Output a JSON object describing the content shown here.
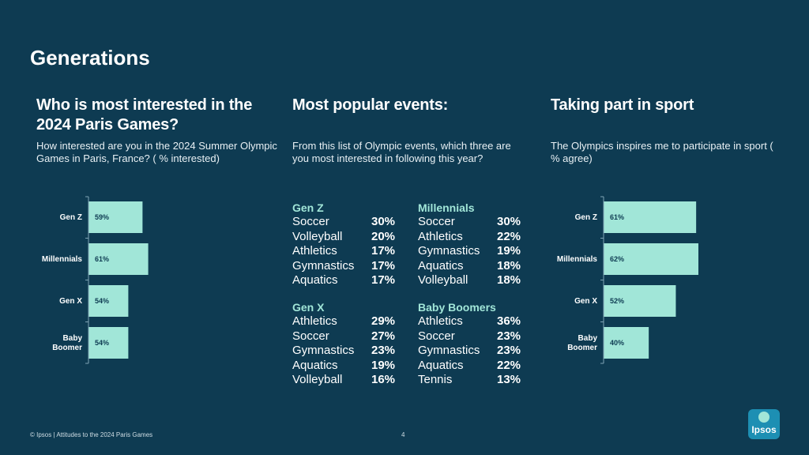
{
  "page": {
    "title": "Generations",
    "footer": "© Ipsos | Attitudes to the 2024 Paris Games",
    "page_number": "4",
    "logo_text": "Ipsos"
  },
  "colors": {
    "background": "#0e3b52",
    "bar": "#a1e6d8",
    "accent_text": "#a1e6d8"
  },
  "section1": {
    "heading": "Who is most interested in the 2024 Paris Games?",
    "subtitle": "How interested are you in the 2024 Summer Olympic Games in Paris, France? ( % interested)"
  },
  "section2": {
    "heading": "Most popular events:",
    "subtitle": "From this list of Olympic events, which three are you most interested in following this year?",
    "groups": [
      {
        "name": "Gen Z",
        "events": [
          {
            "name": "Soccer",
            "value": "30%"
          },
          {
            "name": "Volleyball",
            "value": "20%"
          },
          {
            "name": "Athletics",
            "value": "17%"
          },
          {
            "name": "Gymnastics",
            "value": "17%"
          },
          {
            "name": "Aquatics",
            "value": "17%"
          }
        ]
      },
      {
        "name": "Millennials",
        "events": [
          {
            "name": "Soccer",
            "value": "30%"
          },
          {
            "name": "Athletics",
            "value": "22%"
          },
          {
            "name": "Gymnastics",
            "value": "19%"
          },
          {
            "name": "Aquatics",
            "value": "18%"
          },
          {
            "name": "Volleyball",
            "value": "18%"
          }
        ]
      },
      {
        "name": "Gen X",
        "events": [
          {
            "name": "Athletics",
            "value": "29%"
          },
          {
            "name": "Soccer",
            "value": "27%"
          },
          {
            "name": "Gymnastics",
            "value": "23%"
          },
          {
            "name": "Aquatics",
            "value": "19%"
          },
          {
            "name": "Volleyball",
            "value": "16%"
          }
        ]
      },
      {
        "name": "Baby Boomers",
        "events": [
          {
            "name": "Athletics",
            "value": "36%"
          },
          {
            "name": "Soccer",
            "value": "23%"
          },
          {
            "name": "Gymnastics",
            "value": "23%"
          },
          {
            "name": "Aquatics",
            "value": "22%"
          },
          {
            "name": "Tennis",
            "value": "13%"
          }
        ]
      }
    ]
  },
  "section3": {
    "heading": "Taking part in sport",
    "subtitle": "The Olympics inspires me to participate in sport ( % agree)"
  },
  "chart_data": [
    {
      "type": "bar",
      "orientation": "horizontal",
      "title": "Who is most interested in the 2024 Paris Games?",
      "categories": [
        [
          "Gen Z"
        ],
        [
          "Millennials"
        ],
        [
          "Gen X"
        ],
        [
          "Baby",
          "Boomer"
        ]
      ],
      "values": [
        59,
        61,
        54,
        54
      ],
      "labels": [
        "59%",
        "61%",
        "54%",
        "54%"
      ],
      "xlim": [
        40,
        90
      ],
      "xlabel": "",
      "ylabel": ""
    },
    {
      "type": "bar",
      "orientation": "horizontal",
      "title": "Taking part in sport",
      "categories": [
        [
          "Gen Z"
        ],
        [
          "Millennials"
        ],
        [
          "Gen X"
        ],
        [
          "Baby",
          "Boomer"
        ]
      ],
      "values": [
        61,
        62,
        52,
        40
      ],
      "labels": [
        "61%",
        "62%",
        "52%",
        "40%"
      ],
      "xlim": [
        20,
        83
      ],
      "xlabel": "",
      "ylabel": ""
    }
  ]
}
